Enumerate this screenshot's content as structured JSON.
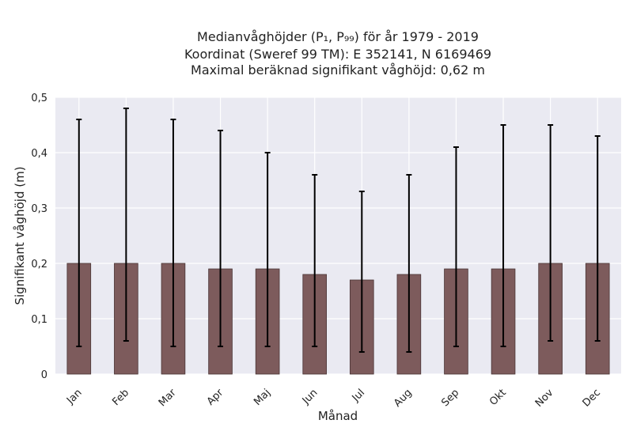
{
  "chart_data": {
    "type": "bar",
    "title_lines": [
      "Medianvåghöjder (P₁, P₉₉) för år 1979 - 2019",
      "Koordinat (Sweref 99 TM): E 352141, N 6169469",
      "Maximal beräknad signifikant våghöjd: 0,62 m"
    ],
    "xlabel": "Månad",
    "ylabel": "Signifikant våghöjd (m)",
    "ylim": [
      0,
      0.5
    ],
    "yticks": [
      0,
      0.1,
      0.2,
      0.3,
      0.4,
      0.5
    ],
    "ytick_labels": [
      "0",
      "0,1",
      "0,2",
      "0,3",
      "0,4",
      "0,5"
    ],
    "categories": [
      "Jan",
      "Feb",
      "Mar",
      "Apr",
      "Maj",
      "Jun",
      "Jul",
      "Aug",
      "Sep",
      "Okt",
      "Nov",
      "Dec"
    ],
    "values": [
      0.2,
      0.2,
      0.2,
      0.19,
      0.19,
      0.18,
      0.17,
      0.18,
      0.19,
      0.19,
      0.2,
      0.2
    ],
    "error_low": [
      0.05,
      0.06,
      0.05,
      0.05,
      0.05,
      0.05,
      0.04,
      0.04,
      0.05,
      0.05,
      0.06,
      0.06
    ],
    "error_high": [
      0.46,
      0.48,
      0.46,
      0.44,
      0.4,
      0.36,
      0.33,
      0.36,
      0.41,
      0.45,
      0.45,
      0.43
    ],
    "grid": true,
    "colors": {
      "bar": "#7d5b5c",
      "bar_edge": "#4a3536",
      "error_bar": "#000000",
      "plot_background": "#eaeaf2",
      "grid": "#ffffff"
    }
  }
}
